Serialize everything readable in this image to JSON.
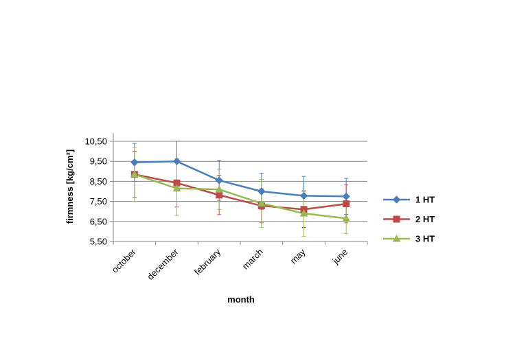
{
  "chart_data": {
    "type": "line",
    "title": "",
    "xlabel": "month",
    "ylabel": "firmness [kg/cm²]",
    "categories": [
      "october",
      "december",
      "february",
      "march",
      "may",
      "june"
    ],
    "ylim": [
      5.5,
      10.5
    ],
    "yticks": [
      "5,50",
      "6,50",
      "7,50",
      "8,50",
      "9,50",
      "10,50"
    ],
    "grid": true,
    "legend": "right",
    "series": [
      {
        "name": "1 HT",
        "color": "#4a7ebb",
        "marker": "diamond",
        "values": [
          9.45,
          9.5,
          8.55,
          8.0,
          7.78,
          7.75
        ],
        "error": [
          0.95,
          1.0,
          1.0,
          0.9,
          0.97,
          0.9
        ]
      },
      {
        "name": "2 HT",
        "color": "#be4b48",
        "marker": "square",
        "values": [
          8.85,
          8.42,
          7.82,
          7.28,
          7.1,
          7.38
        ],
        "error": [
          1.15,
          1.2,
          0.98,
          0.85,
          0.9,
          0.95
        ]
      },
      {
        "name": "3 HT",
        "color": "#98b954",
        "marker": "triangle",
        "values": [
          8.85,
          8.15,
          8.1,
          7.4,
          6.9,
          6.65
        ],
        "error": [
          1.35,
          1.35,
          1.0,
          1.2,
          1.15,
          0.75
        ]
      }
    ]
  }
}
